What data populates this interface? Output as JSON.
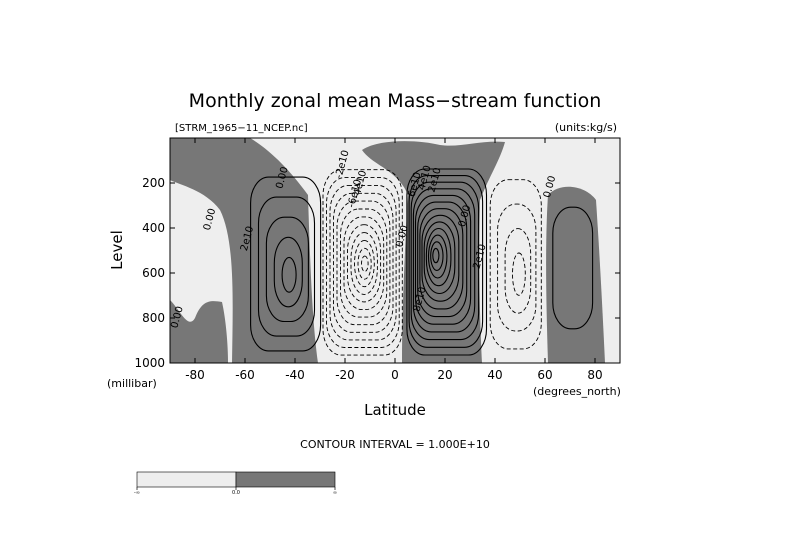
{
  "chart_data": {
    "type": "contour",
    "title": "Monthly zonal mean Mass−stream function",
    "source_file": "[STRM_1965−11_NCEP.nc]",
    "units_label": "(units:kg/s)",
    "xlabel": "Latitude",
    "ylabel": "Level",
    "x_unit_label": "(degrees_north)",
    "y_unit_label": "(millibar)",
    "xlim": [
      -90,
      90
    ],
    "ylim": [
      1000,
      0
    ],
    "x_ticks": [
      -80,
      -60,
      -40,
      -20,
      0,
      20,
      40,
      60,
      80
    ],
    "y_ticks": [
      200,
      400,
      600,
      800,
      1000
    ],
    "contour_interval_text": "CONTOUR INTERVAL = 1.000E+10",
    "contour_interval": 10000000000.0,
    "shading": {
      "negative_color": "#eeeeee",
      "positive_color": "#777777"
    },
    "colorbar": {
      "labels": [
        "-∞",
        "0.0",
        "∞"
      ]
    },
    "cells": [
      {
        "sign": "positive",
        "lat": [
          -60,
          -28
        ],
        "peak_lat": -42,
        "peak_level": 620,
        "peak": 50000000000.0,
        "contours": 5
      },
      {
        "sign": "negative",
        "lat": [
          -30,
          4
        ],
        "peak_lat": -12,
        "peak_level": 560,
        "peak": -120000000000.0,
        "contours": 12
      },
      {
        "sign": "positive",
        "lat": [
          4,
          38
        ],
        "peak_lat": 16,
        "peak_level": 520,
        "peak": 130000000000.0,
        "contours": 13
      },
      {
        "sign": "negative",
        "lat": [
          36,
          60
        ],
        "peak_lat": 50,
        "peak_level": 620,
        "peak": -40000000000.0,
        "contours": 4
      },
      {
        "sign": "positive",
        "lat": [
          60,
          86
        ],
        "peak_lat": 68,
        "peak_level": 620,
        "peak": 10000000000.0,
        "contours": 1
      }
    ],
    "contour_labels": [
      {
        "text": "0.00",
        "lat": -73,
        "level": 365
      },
      {
        "text": "2e10",
        "lat": -58,
        "level": 450
      },
      {
        "text": "0.00",
        "lat": -44,
        "level": 180
      },
      {
        "text": "-2e10",
        "lat": -20,
        "level": 120
      },
      {
        "text": "-6e10",
        "lat": -15,
        "level": 250
      },
      {
        "text": "-4e10",
        "lat": -13,
        "level": 210
      },
      {
        "text": "0.00",
        "lat": 4,
        "level": 440
      },
      {
        "text": "6e10",
        "lat": 9,
        "level": 210
      },
      {
        "text": "4e10",
        "lat": 13,
        "level": 180
      },
      {
        "text": "2e10",
        "lat": 17,
        "level": 190
      },
      {
        "text": "8e10",
        "lat": 11,
        "level": 720
      },
      {
        "text": "0.00",
        "lat": 29,
        "level": 350
      },
      {
        "text": "2e10",
        "lat": 35,
        "level": 530
      },
      {
        "text": "0.00",
        "lat": 63,
        "level": 220
      },
      {
        "text": "0.00",
        "lat": -86,
        "level": 800
      }
    ]
  }
}
